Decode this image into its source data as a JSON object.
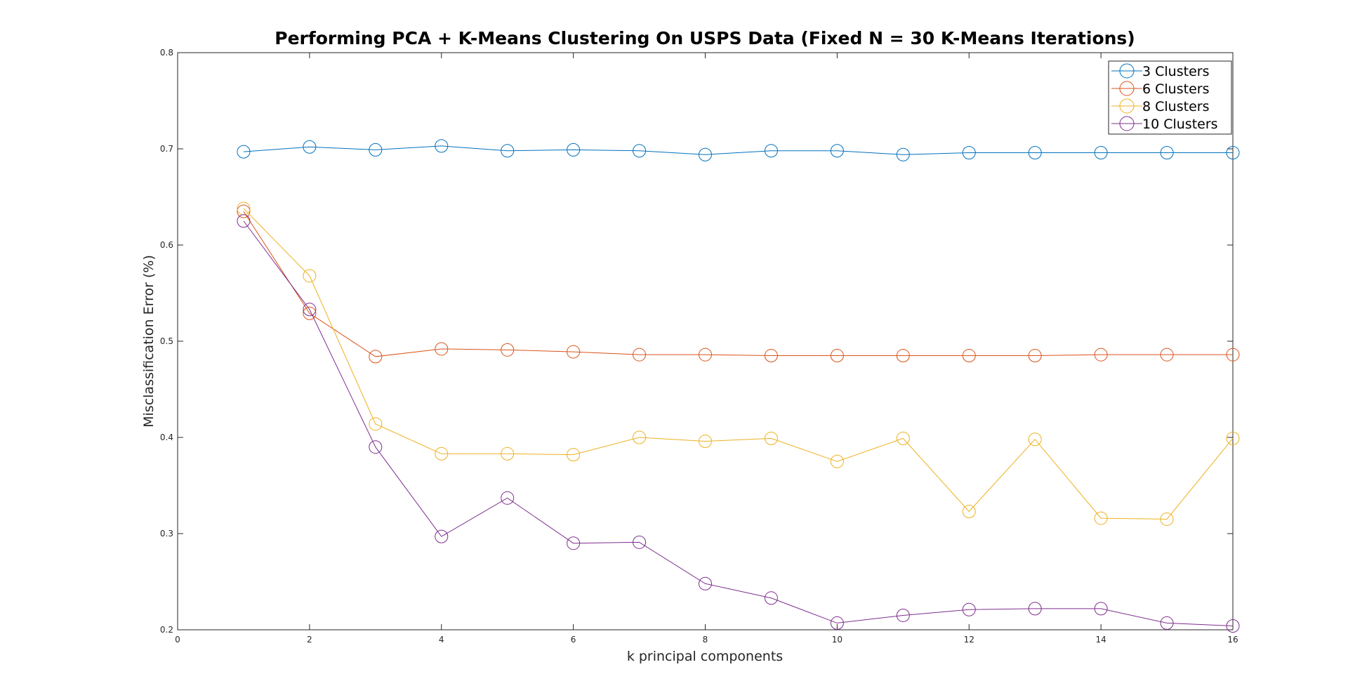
{
  "chart_data": {
    "type": "line",
    "title": "Performing PCA + K-Means Clustering On USPS Data (Fixed N = 30 K-Means Iterations)",
    "xlabel": "k principal components",
    "ylabel": "Misclassification Error (%)",
    "xlim": [
      0,
      16
    ],
    "ylim": [
      0.2,
      0.8
    ],
    "xticks": [
      0,
      2,
      4,
      6,
      8,
      10,
      12,
      14,
      16
    ],
    "yticks": [
      0.2,
      0.3,
      0.4,
      0.5,
      0.6,
      0.7,
      0.8
    ],
    "grid": false,
    "legend_position": "top-right",
    "marker": "circle",
    "x": [
      1,
      2,
      3,
      4,
      5,
      6,
      7,
      8,
      9,
      10,
      11,
      12,
      13,
      14,
      15,
      16
    ],
    "series": [
      {
        "name": "3 Clusters",
        "color": "#0072BD",
        "values": [
          0.697,
          0.702,
          0.699,
          0.703,
          0.698,
          0.699,
          0.698,
          0.694,
          0.698,
          0.698,
          0.694,
          0.696,
          0.696,
          0.696,
          0.696,
          0.696
        ]
      },
      {
        "name": "6 Clusters",
        "color": "#D95319",
        "values": [
          0.635,
          0.529,
          0.484,
          0.492,
          0.491,
          0.489,
          0.486,
          0.486,
          0.485,
          0.485,
          0.485,
          0.485,
          0.485,
          0.486,
          0.486,
          0.486
        ]
      },
      {
        "name": "8 Clusters",
        "color": "#EDB120",
        "values": [
          0.638,
          0.568,
          0.414,
          0.383,
          0.383,
          0.382,
          0.4,
          0.396,
          0.399,
          0.375,
          0.399,
          0.323,
          0.398,
          0.316,
          0.315,
          0.399
        ]
      },
      {
        "name": "10 Clusters",
        "color": "#7E2F8E",
        "values": [
          0.625,
          0.533,
          0.39,
          0.297,
          0.337,
          0.29,
          0.291,
          0.248,
          0.233,
          0.207,
          0.215,
          0.221,
          0.222,
          0.222,
          0.207,
          0.204
        ]
      }
    ]
  }
}
